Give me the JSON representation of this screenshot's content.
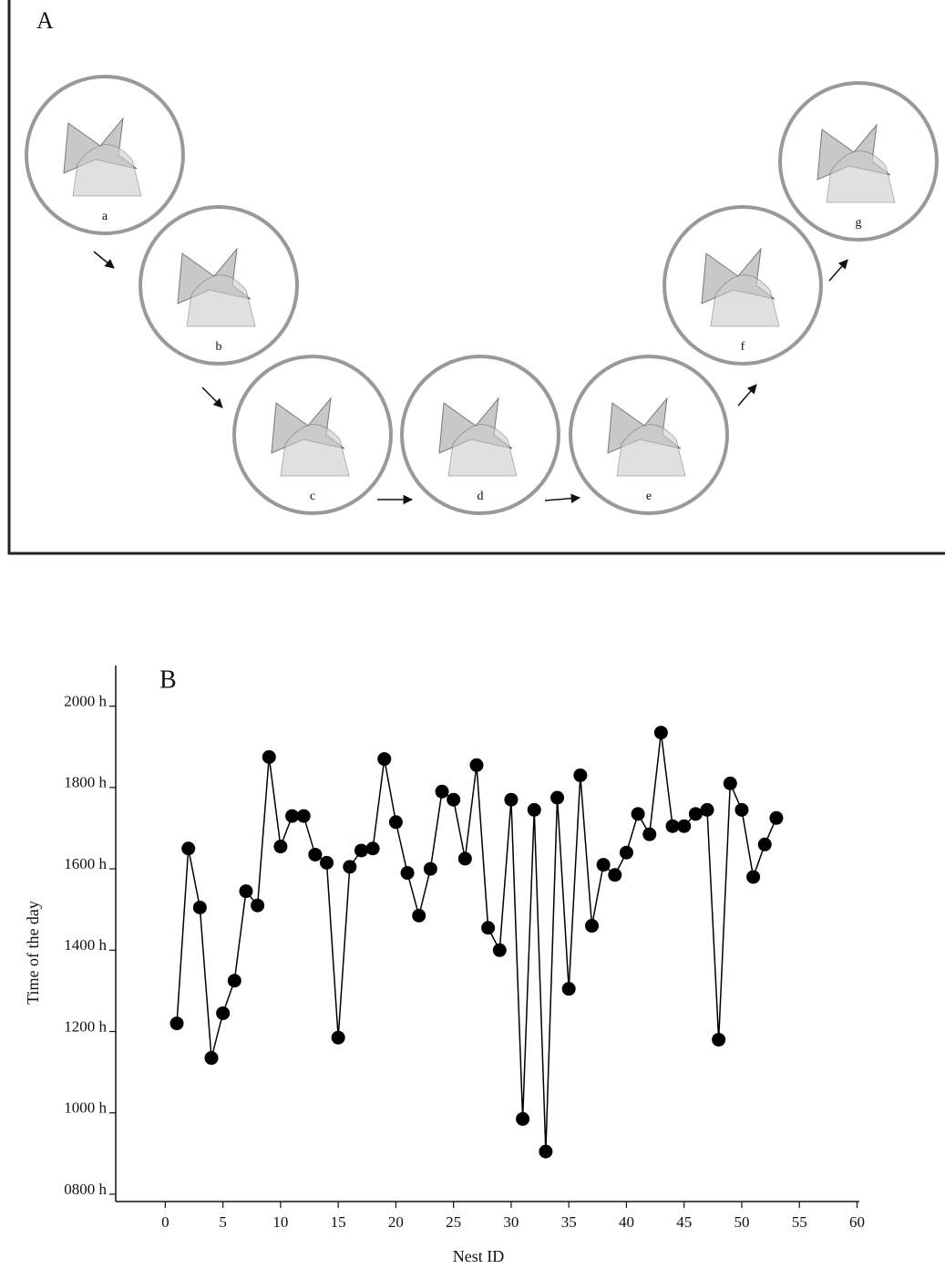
{
  "panel_a": {
    "label": "A",
    "stages": [
      "a",
      "b",
      "c",
      "d",
      "e",
      "f",
      "g"
    ]
  },
  "chart_data": {
    "type": "line",
    "panel_label": "B",
    "x_label": "Nest ID",
    "y_label": "Time of the day",
    "x": [
      1,
      2,
      3,
      4,
      5,
      6,
      7,
      8,
      9,
      10,
      11,
      12,
      13,
      14,
      15,
      16,
      17,
      18,
      19,
      20,
      21,
      22,
      23,
      24,
      25,
      26,
      27,
      28,
      29,
      30,
      31,
      32,
      33,
      34,
      35,
      36,
      37,
      38,
      39,
      40,
      41,
      42,
      43,
      44,
      45,
      46,
      47,
      48,
      49,
      50,
      51,
      52,
      53
    ],
    "values": [
      1220,
      1650,
      1505,
      1135,
      1245,
      1325,
      1545,
      1510,
      1875,
      1655,
      1730,
      1730,
      1635,
      1615,
      1185,
      1605,
      1645,
      1650,
      1870,
      1715,
      1590,
      1485,
      1600,
      1790,
      1770,
      1625,
      1855,
      1455,
      1400,
      1770,
      985,
      1745,
      905,
      1775,
      1305,
      1830,
      1460,
      1610,
      1585,
      1640,
      1735,
      1685,
      1935,
      1705,
      1705,
      1735,
      1745,
      1180,
      1810,
      1745,
      1580,
      1660,
      1725
    ],
    "color": "#000000",
    "xlim": [
      -4.3,
      60.2
    ],
    "xticks": [
      0,
      5,
      10,
      15,
      20,
      25,
      30,
      35,
      40,
      45,
      50,
      55,
      60
    ],
    "ylim": [
      782,
      2100
    ],
    "yticks": [
      {
        "value": 800,
        "label": "0800 h"
      },
      {
        "value": 1000,
        "label": "1000 h"
      },
      {
        "value": 1200,
        "label": "1200 h"
      },
      {
        "value": 1400,
        "label": "1400 h"
      },
      {
        "value": 1600,
        "label": "1600 h"
      },
      {
        "value": 1800,
        "label": "1800 h"
      },
      {
        "value": 2000,
        "label": "2000 h"
      }
    ]
  }
}
